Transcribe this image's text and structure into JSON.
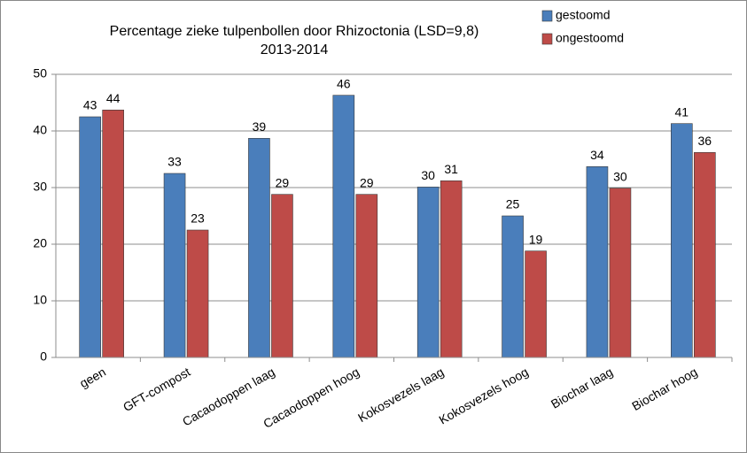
{
  "chart_data": {
    "type": "bar",
    "title": "Percentage zieke tulpenbollen door Rhizoctonia (LSD=9,8)",
    "subtitle": "2013-2014",
    "categories": [
      "geen",
      "GFT-compost",
      "Cacaodoppen laag",
      "Cacaodoppen hoog",
      "Kokosvezels laag",
      "Kokosvezels hoog",
      "Biochar laag",
      "Biochar hoog"
    ],
    "series": [
      {
        "name": "gestoomd",
        "color": "#4a7ebb",
        "values": [
          42.5,
          32.5,
          38.7,
          46.3,
          30.1,
          25,
          33.7,
          41.3
        ],
        "value_labels": [
          "43",
          "33",
          "39",
          "46",
          "30",
          "25",
          "34",
          "41"
        ]
      },
      {
        "name": "ongestoomd",
        "color": "#be4b48",
        "values": [
          43.7,
          22.5,
          28.8,
          28.8,
          31.2,
          18.8,
          29.9,
          36.2
        ],
        "value_labels": [
          "44",
          "23",
          "29",
          "29",
          "31",
          "19",
          "30",
          "36"
        ]
      }
    ],
    "ylim": [
      0,
      50
    ],
    "yticks": [
      0,
      10,
      20,
      30,
      40,
      50
    ],
    "grid": true,
    "legend": "top-right"
  }
}
